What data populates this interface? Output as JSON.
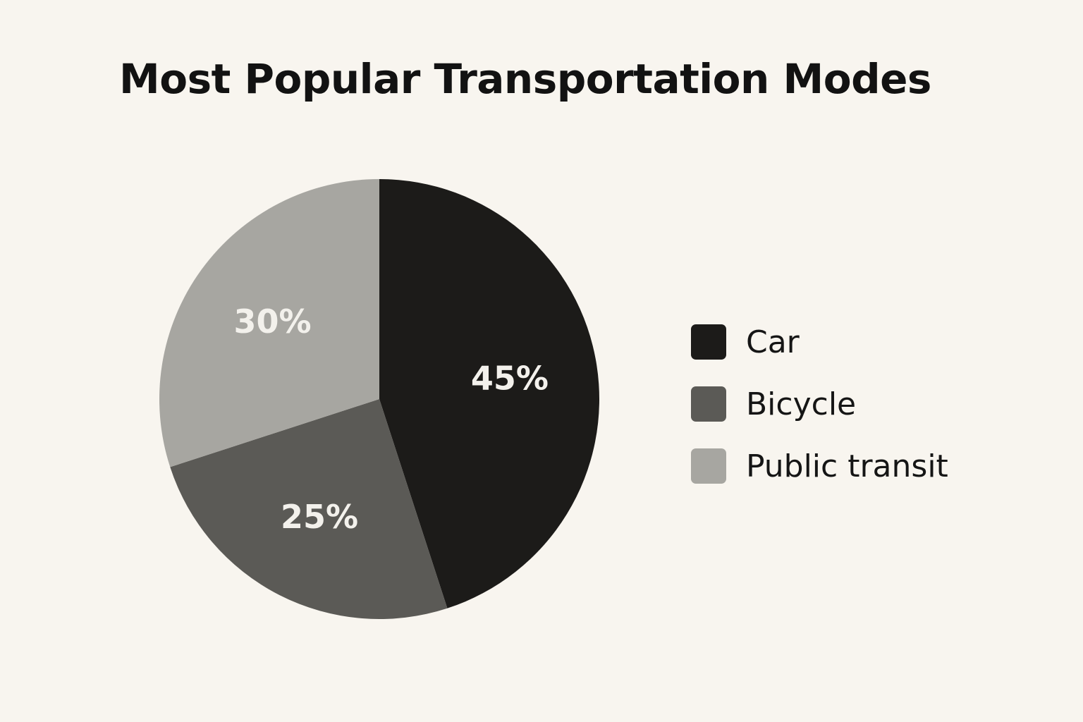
{
  "chart_data": {
    "type": "pie",
    "title": "Most Popular Transportation Modes",
    "slices": [
      {
        "label": "Car",
        "value": 45,
        "display": "45%",
        "color": "#1c1b19"
      },
      {
        "label": "Bicycle",
        "value": 25,
        "display": "25%",
        "color": "#5b5a56"
      },
      {
        "label": "Public transit",
        "value": 30,
        "display": "30%",
        "color": "#a7a6a1"
      }
    ],
    "legend_position": "right"
  }
}
